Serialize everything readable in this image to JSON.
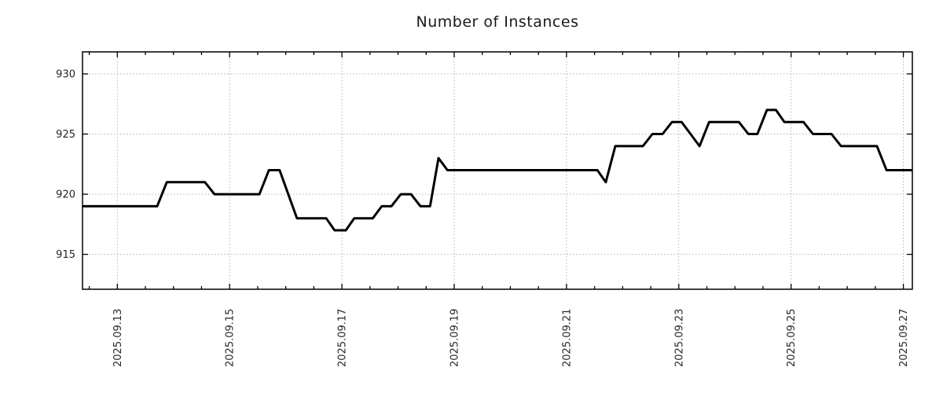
{
  "title": "Number of Instances",
  "colors": {
    "background": "#ffffff",
    "line": "#000000",
    "grid": "#b3b3b3",
    "axis": "#000000",
    "tick_text": "#262626",
    "title_text": "#1a1a1a"
  },
  "chart_data": {
    "type": "line",
    "title": "Number of Instances",
    "xlabel": "",
    "ylabel": "",
    "grid": "dotted, at major ticks only",
    "legend": "none",
    "x_axis": {
      "unit": "date",
      "tick_labels": [
        "2025.09.13",
        "2025.09.15",
        "2025.09.17",
        "2025.09.19",
        "2025.09.21",
        "2025.09.23",
        "2025.09.25",
        "2025.09.27"
      ],
      "tick_day_offsets": [
        0,
        2,
        4,
        6,
        8,
        10,
        12,
        14
      ],
      "minor_tick_interval_days": 0.5,
      "range_days": [
        -0.62,
        14.16
      ],
      "label_rotation_deg": -90
    },
    "y_axis": {
      "ticks": [
        915,
        920,
        925,
        930
      ],
      "range": [
        912.1,
        931.83
      ]
    },
    "series": [
      {
        "name": "Number of Instances",
        "color": "#000000",
        "sampling": "approx. every 4 hours",
        "points_day_value": [
          [
            -0.62,
            919
          ],
          [
            0.71,
            919
          ],
          [
            0.88,
            921
          ],
          [
            1.56,
            921
          ],
          [
            1.73,
            920
          ],
          [
            2.53,
            920
          ],
          [
            2.7,
            922
          ],
          [
            2.89,
            922
          ],
          [
            3.2,
            918
          ],
          [
            3.72,
            918
          ],
          [
            3.87,
            917
          ],
          [
            4.07,
            917
          ],
          [
            4.22,
            918
          ],
          [
            4.55,
            918
          ],
          [
            4.71,
            919
          ],
          [
            4.88,
            919
          ],
          [
            5.05,
            920
          ],
          [
            5.23,
            920
          ],
          [
            5.4,
            919
          ],
          [
            5.57,
            919
          ],
          [
            5.72,
            923
          ],
          [
            5.88,
            922
          ],
          [
            8.55,
            922
          ],
          [
            8.7,
            921
          ],
          [
            8.87,
            924
          ],
          [
            9.36,
            924
          ],
          [
            9.53,
            925
          ],
          [
            9.71,
            925
          ],
          [
            9.88,
            926
          ],
          [
            10.05,
            926
          ],
          [
            10.37,
            924
          ],
          [
            10.54,
            926
          ],
          [
            11.07,
            926
          ],
          [
            11.24,
            925
          ],
          [
            11.4,
            925
          ],
          [
            11.57,
            927
          ],
          [
            11.73,
            927
          ],
          [
            11.88,
            926
          ],
          [
            12.22,
            926
          ],
          [
            12.39,
            925
          ],
          [
            12.72,
            925
          ],
          [
            12.89,
            924
          ],
          [
            13.53,
            924
          ],
          [
            13.7,
            922
          ],
          [
            14.16,
            922
          ]
        ]
      }
    ]
  }
}
